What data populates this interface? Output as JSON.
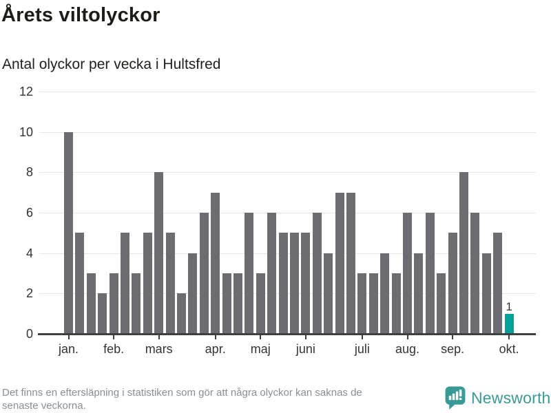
{
  "header": {
    "title": "Årets viltolyckor",
    "subtitle": "Antal olyckor per vecka i Hultsfred"
  },
  "chart_data": {
    "type": "bar",
    "title": "Årets viltolyckor",
    "subtitle": "Antal olyckor per vecka i Hultsfred",
    "x_unit": "vecka",
    "values": [
      10,
      5,
      3,
      2,
      3,
      5,
      3,
      5,
      8,
      5,
      2,
      4,
      6,
      7,
      3,
      3,
      6,
      3,
      6,
      5,
      5,
      5,
      6,
      4,
      7,
      7,
      3,
      3,
      4,
      3,
      6,
      4,
      6,
      3,
      5,
      8,
      6,
      4,
      5,
      1
    ],
    "month_ticks": [
      {
        "label": "jan.",
        "index": 0
      },
      {
        "label": "feb.",
        "index": 4
      },
      {
        "label": "mars",
        "index": 8
      },
      {
        "label": "apr.",
        "index": 13
      },
      {
        "label": "maj",
        "index": 17
      },
      {
        "label": "juni",
        "index": 21
      },
      {
        "label": "juli",
        "index": 26
      },
      {
        "label": "aug.",
        "index": 30
      },
      {
        "label": "sep.",
        "index": 34
      },
      {
        "label": "okt.",
        "index": 39
      }
    ],
    "ylim": [
      0,
      12
    ],
    "yticks": [
      0,
      2,
      4,
      6,
      8,
      10,
      12
    ],
    "grid": true,
    "legend": "none",
    "bar_color": "#6c6c73",
    "highlight": {
      "index": 39,
      "color": "#00a39c",
      "label": "1"
    }
  },
  "footer": {
    "note_lines": [
      "Det finns en eftersläpning i statistiken som gör att några olyckor kan saknas de",
      "senaste veckorna."
    ],
    "brand": "Newsworthy",
    "brand_color": "#379a96"
  }
}
